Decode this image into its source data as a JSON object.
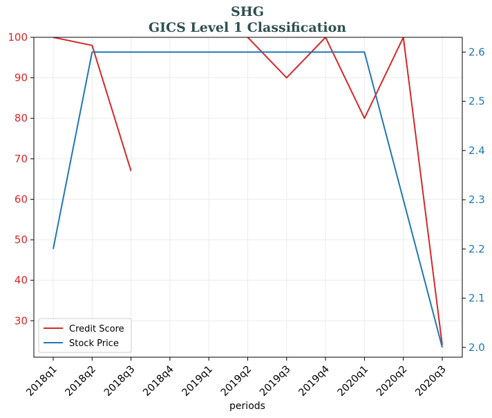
{
  "chart_data": {
    "type": "line",
    "title": "SHG",
    "subtitle": "GICS Level 1 Classification",
    "xlabel": "periods",
    "categories": [
      "2018q1",
      "2018q2",
      "2018q3",
      "2018q4",
      "2019q1",
      "2019q2",
      "2019q3",
      "2019q4",
      "2020q1",
      "2020q2",
      "2020q3"
    ],
    "left_axis": {
      "ylim": [
        21,
        100
      ],
      "ticks": [
        30,
        40,
        50,
        60,
        70,
        80,
        90,
        100
      ],
      "color": "#d62728"
    },
    "right_axis": {
      "ylim": [
        1.98,
        2.63
      ],
      "ticks": [
        2.0,
        2.1,
        2.2,
        2.3,
        2.4,
        2.5,
        2.6
      ],
      "tick_labels": [
        "2.0",
        "2.1",
        "2.2",
        "2.3",
        "2.4",
        "2.5",
        "2.6"
      ],
      "color": "#1f77b4"
    },
    "grid": true,
    "legend_position": "bottom-left",
    "series": [
      {
        "name": "Credit Score",
        "axis": "left",
        "color": "#d62728",
        "segments": [
          [
            [
              0,
              100
            ],
            [
              1,
              98
            ],
            [
              2,
              67
            ]
          ],
          [
            [
              4.7,
              104
            ],
            [
              5,
              100
            ],
            [
              6,
              90
            ],
            [
              7,
              100
            ],
            [
              8,
              80
            ],
            [
              9,
              100
            ],
            [
              10,
              24
            ]
          ]
        ]
      },
      {
        "name": "Stock Price",
        "axis": "right",
        "color": "#1f77b4",
        "segments": [
          [
            [
              0,
              2.2
            ],
            [
              1,
              2.6
            ],
            [
              2,
              2.6
            ],
            [
              3,
              2.6
            ],
            [
              4,
              2.6
            ],
            [
              5,
              2.6
            ],
            [
              6,
              2.6
            ],
            [
              7,
              2.6
            ],
            [
              8,
              2.6
            ],
            [
              9,
              2.3
            ],
            [
              10,
              2.0
            ]
          ]
        ]
      }
    ]
  }
}
